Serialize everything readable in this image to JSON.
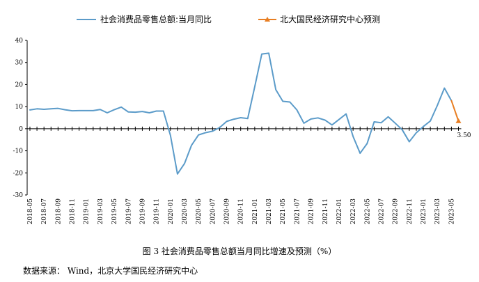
{
  "caption": "图 3  社会消费品零售总额当月同比增速及预测（%）",
  "source": "数据来源：   Wind，北京大学国民经济研究中心",
  "chart_data": {
    "type": "line",
    "x": [
      "2018-05",
      "2018-06",
      "2018-07",
      "2018-08",
      "2018-09",
      "2018-10",
      "2018-11",
      "2018-12",
      "2019-01",
      "2019-02",
      "2019-03",
      "2019-04",
      "2019-05",
      "2019-06",
      "2019-07",
      "2019-08",
      "2019-09",
      "2019-10",
      "2019-11",
      "2019-12",
      "2020-01",
      "2020-02",
      "2020-03",
      "2020-04",
      "2020-05",
      "2020-06",
      "2020-07",
      "2020-08",
      "2020-09",
      "2020-10",
      "2020-11",
      "2020-12",
      "2021-01",
      "2021-02",
      "2021-03",
      "2021-04",
      "2021-05",
      "2021-06",
      "2021-07",
      "2021-08",
      "2021-09",
      "2021-10",
      "2021-11",
      "2021-12",
      "2022-01",
      "2022-02",
      "2022-03",
      "2022-04",
      "2022-05",
      "2022-06",
      "2022-07",
      "2022-08",
      "2022-09",
      "2022-10",
      "2022-11",
      "2022-12",
      "2023-01",
      "2023-02",
      "2023-03",
      "2023-04",
      "2023-05",
      "2023-06"
    ],
    "x_tick_labels": [
      "2018-05",
      "2018-07",
      "2018-09",
      "2018-11",
      "2019-01",
      "2019-03",
      "2019-05",
      "2019-07",
      "2019-09",
      "2019-11",
      "2020-01",
      "2020-03",
      "2020-05",
      "2020-07",
      "2020-09",
      "2020-11",
      "2021-01",
      "2021-03",
      "2021-05",
      "2021-07",
      "2021-09",
      "2021-11",
      "2022-01",
      "2022-03",
      "2022-05",
      "2022-07",
      "2022-09",
      "2022-11",
      "2023-01",
      "2023-03",
      "2023-05"
    ],
    "series": [
      {
        "name": "社会消费品零售总额:当月同比",
        "color": "#5b9bc9",
        "values": [
          8.5,
          9.0,
          8.8,
          9.0,
          9.2,
          8.6,
          8.1,
          8.2,
          8.2,
          8.2,
          8.7,
          7.2,
          8.6,
          9.8,
          7.6,
          7.5,
          7.8,
          7.2,
          8.0,
          8.0,
          -3.0,
          -20.5,
          -15.8,
          -7.5,
          -2.8,
          -1.8,
          -1.1,
          0.5,
          3.3,
          4.3,
          5.0,
          4.6,
          19.0,
          33.8,
          34.2,
          17.7,
          12.4,
          12.1,
          8.5,
          2.5,
          4.4,
          4.9,
          3.9,
          1.7,
          4.2,
          6.7,
          -3.5,
          -11.1,
          -6.7,
          3.1,
          2.7,
          5.4,
          2.5,
          -0.5,
          -5.9,
          -1.8,
          1.0,
          3.5,
          10.6,
          18.4,
          12.7,
          null
        ]
      },
      {
        "name": "北大国民经济研究中心预测",
        "color": "#e87e22",
        "marker": "triangle",
        "values": [
          null,
          null,
          null,
          null,
          null,
          null,
          null,
          null,
          null,
          null,
          null,
          null,
          null,
          null,
          null,
          null,
          null,
          null,
          null,
          null,
          null,
          null,
          null,
          null,
          null,
          null,
          null,
          null,
          null,
          null,
          null,
          null,
          null,
          null,
          null,
          null,
          null,
          null,
          null,
          null,
          null,
          null,
          null,
          null,
          null,
          null,
          null,
          null,
          null,
          null,
          null,
          null,
          null,
          null,
          null,
          null,
          null,
          null,
          null,
          null,
          12.7,
          3.5
        ]
      }
    ],
    "annotations": [
      {
        "x": "2023-06",
        "y": 3.5,
        "text": "3.50"
      }
    ],
    "yticks": [
      40,
      30,
      20,
      10,
      0,
      -10,
      -20,
      -30
    ],
    "ylim": [
      -30,
      40
    ],
    "legend": "top-center",
    "grid": false
  }
}
